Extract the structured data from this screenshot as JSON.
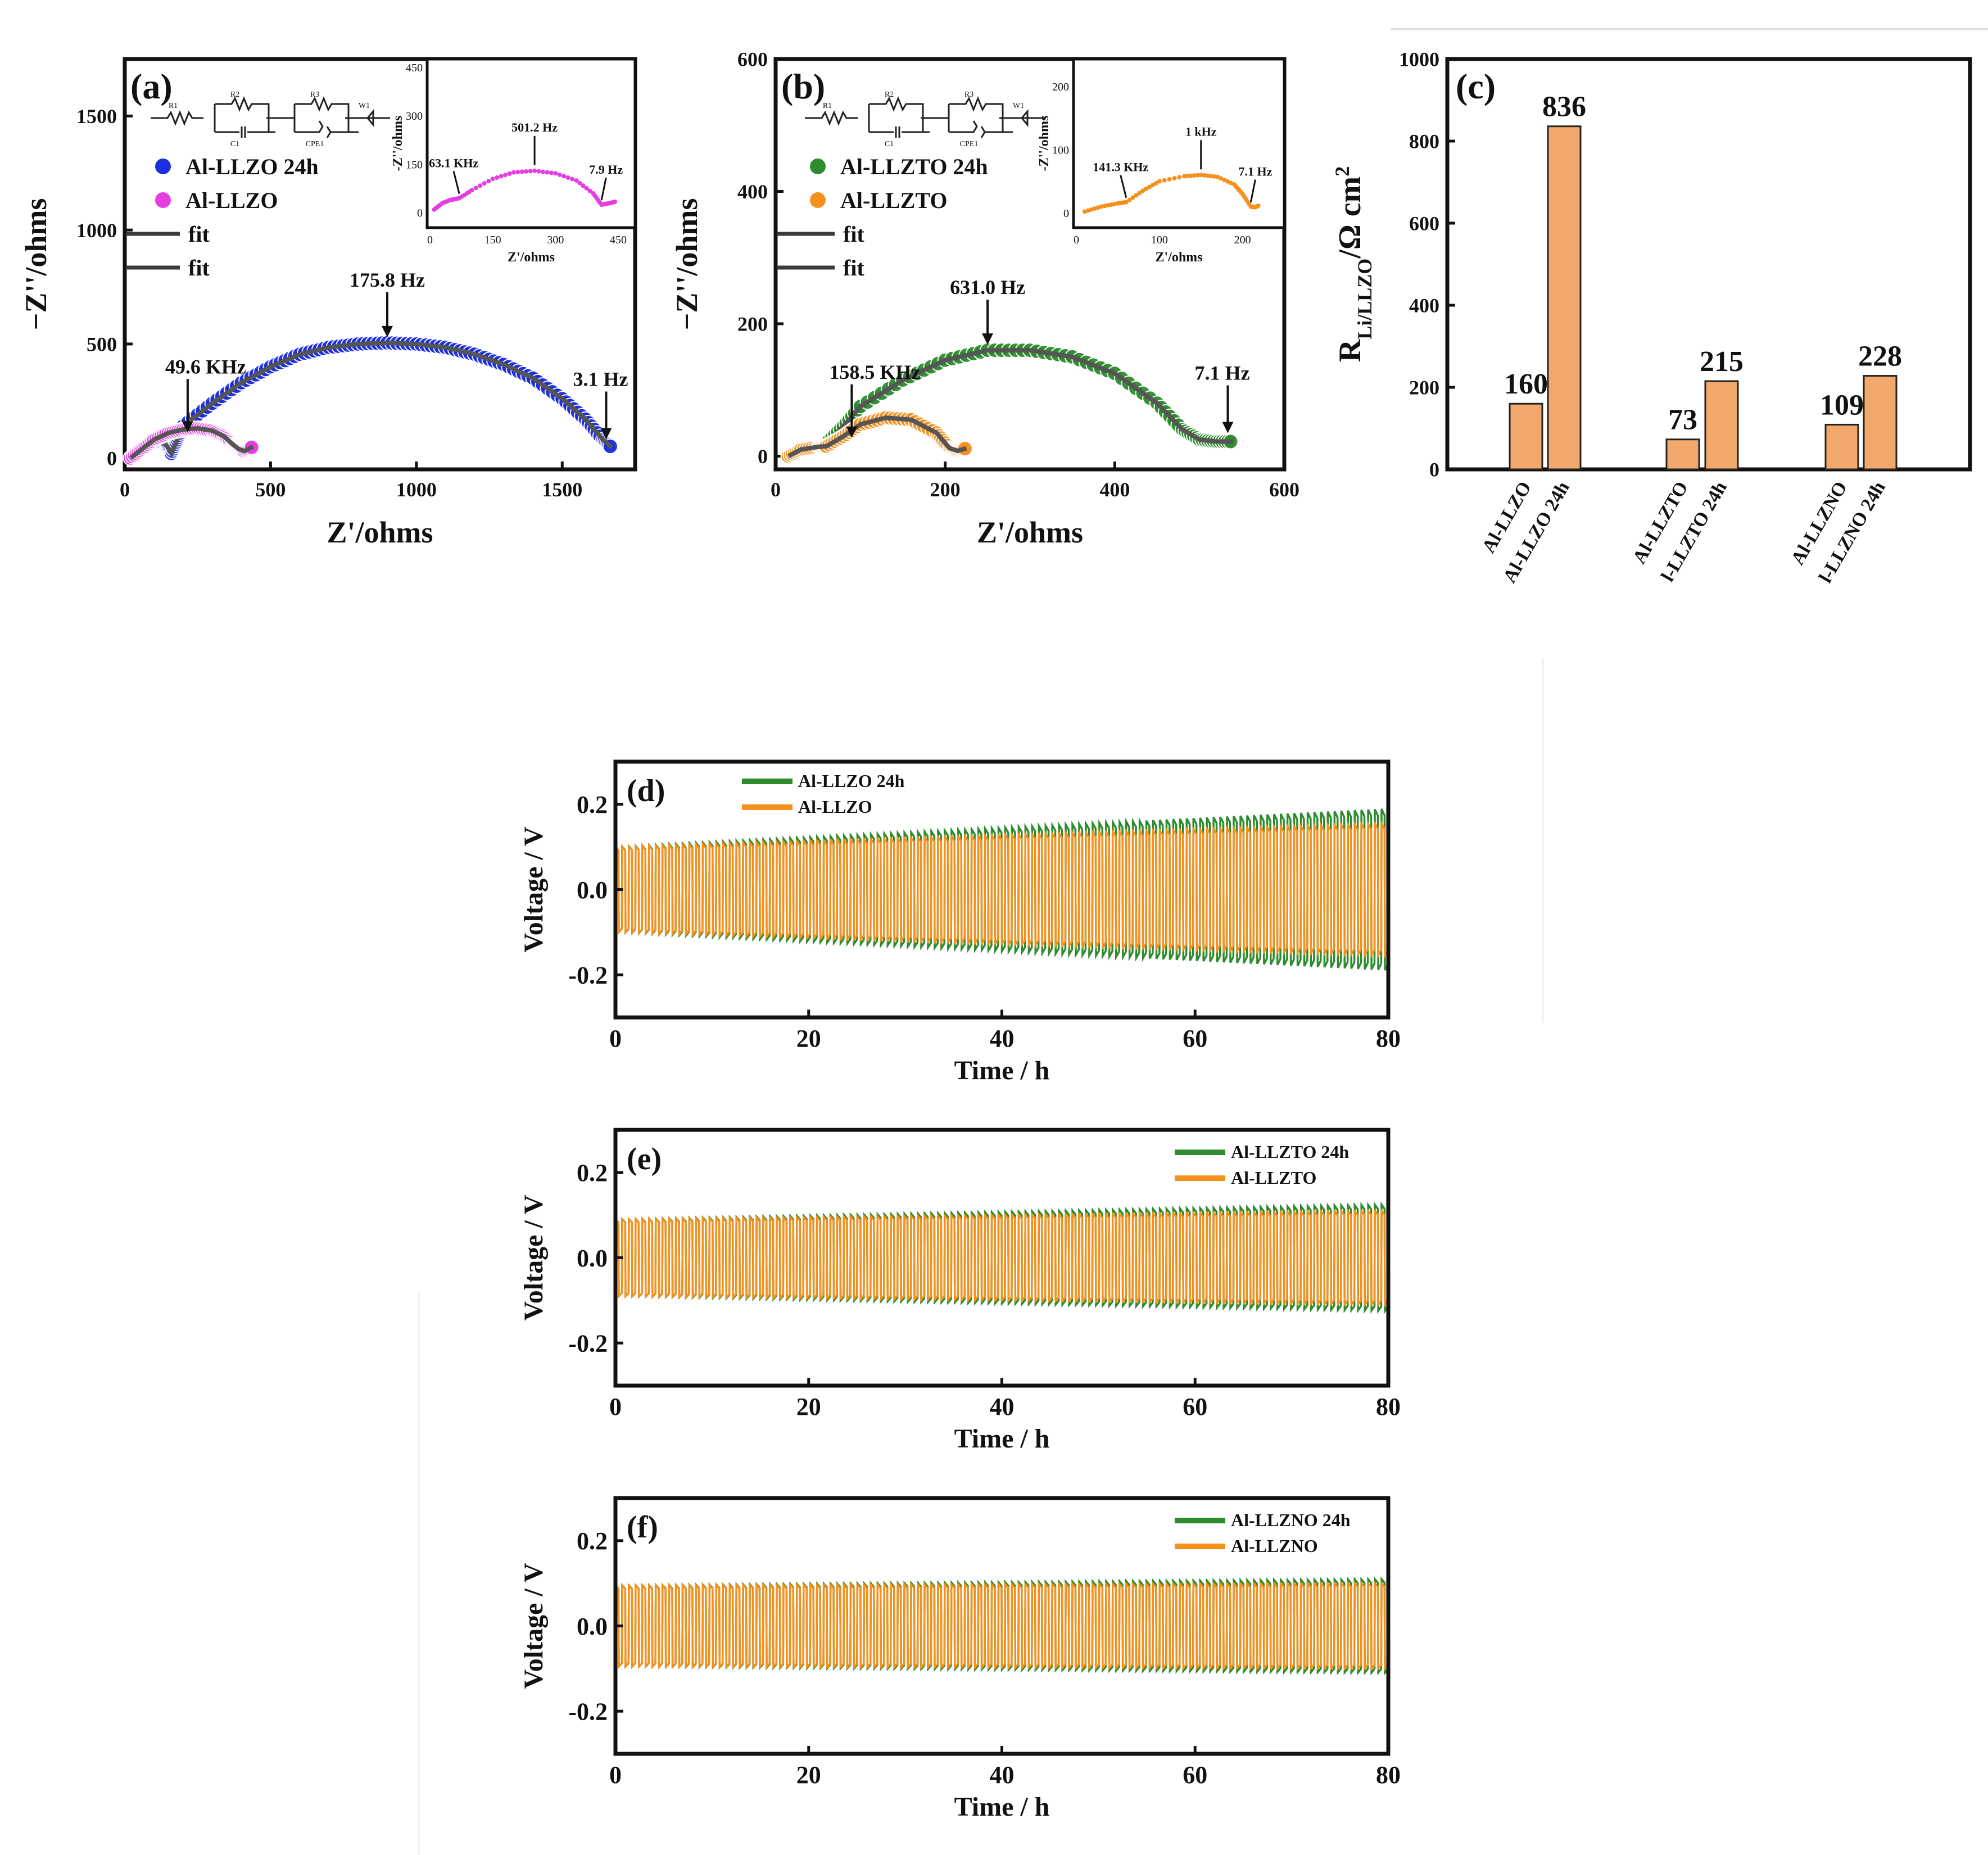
{
  "chart_data": [
    {
      "id": "a",
      "type": "scatter",
      "panel_label": "(a)",
      "xlabel": "Z'/ohms",
      "ylabel": "−Z''/ohms",
      "xlim": [
        0,
        1750
      ],
      "ylim": [
        -50,
        1750
      ],
      "xticks": [
        0,
        500,
        1000,
        1500
      ],
      "yticks": [
        0,
        500,
        1000,
        1500
      ],
      "circuit_labels": [
        "R1",
        "R2",
        "C1",
        "R3",
        "CPE1",
        "W1"
      ],
      "legend": [
        {
          "label": "Al-LLZO 24h",
          "color": "#1f2fe0"
        },
        {
          "label": "Al-LLZO",
          "color": "#e53de0"
        },
        {
          "label": "fit",
          "color": "#3a3a3a"
        },
        {
          "label": "fit",
          "color": "#3a3a3a"
        }
      ],
      "series": [
        {
          "name": "Al-LLZO 24h",
          "color": "#1f2fe0",
          "fit_color": "#555555",
          "x": [
            20,
            60,
            100,
            140,
            160,
            180,
            200,
            300,
            400,
            500,
            600,
            700,
            800,
            900,
            1000,
            1100,
            1200,
            1300,
            1400,
            1500,
            1580,
            1640,
            1670
          ],
          "y": [
            0,
            40,
            75,
            60,
            20,
            80,
            140,
            240,
            330,
            400,
            455,
            485,
            500,
            505,
            500,
            485,
            455,
            410,
            350,
            260,
            170,
            80,
            45
          ]
        },
        {
          "name": "Al-LLZO",
          "color": "#e53de0",
          "fit_color": "#555555",
          "x": [
            20,
            60,
            100,
            150,
            200,
            250,
            300,
            340,
            370,
            390,
            410,
            440
          ],
          "y": [
            0,
            40,
            80,
            110,
            125,
            130,
            120,
            95,
            60,
            40,
            30,
            50
          ]
        }
      ],
      "annotations": [
        "175.8 Hz",
        "49.6 KHz",
        "3.1 Hz"
      ],
      "inset": {
        "xlabel": "Z'/ohms",
        "ylabel": "-Z''/ohms",
        "xlim": [
          0,
          450
        ],
        "ylim": [
          -20,
          450
        ],
        "xticks": [
          0,
          150,
          300,
          450
        ],
        "yticks": [
          0,
          150,
          300,
          450
        ],
        "color": "#e53de0",
        "x": [
          10,
          30,
          50,
          70,
          100,
          150,
          200,
          250,
          300,
          350,
          390,
          410,
          430,
          445
        ],
        "y": [
          10,
          30,
          40,
          45,
          70,
          105,
          125,
          130,
          122,
          100,
          60,
          25,
          30,
          35
        ],
        "annotations": [
          "63.1 KHz",
          "501.2 Hz",
          "7.9 Hz"
        ]
      }
    },
    {
      "id": "b",
      "type": "scatter",
      "panel_label": "(b)",
      "xlabel": "Z'/ohms",
      "ylabel": "−Z''/ohms",
      "xlim": [
        0,
        600
      ],
      "ylim": [
        -20,
        600
      ],
      "xticks": [
        0,
        200,
        400,
        600
      ],
      "yticks": [
        0,
        200,
        400,
        600
      ],
      "circuit_labels": [
        "R1",
        "R2",
        "C1",
        "R3",
        "CPE1",
        "W1"
      ],
      "legend": [
        {
          "label": "Al-LLZTO 24h",
          "color": "#2e8b2e"
        },
        {
          "label": "Al-LLZTO",
          "color": "#f5901e"
        },
        {
          "label": "fit",
          "color": "#3a3a3a"
        },
        {
          "label": "fit",
          "color": "#3a3a3a"
        }
      ],
      "series": [
        {
          "name": "Al-LLZTO 24h",
          "color": "#2e8b2e",
          "fit_color": "#555555",
          "x": [
            15,
            30,
            50,
            60,
            80,
            100,
            150,
            200,
            250,
            300,
            350,
            400,
            450,
            480,
            500,
            520,
            540
          ],
          "y": [
            0,
            12,
            15,
            20,
            45,
            75,
            115,
            145,
            160,
            160,
            150,
            125,
            80,
            40,
            25,
            22,
            22
          ]
        },
        {
          "name": "Al-LLZTO",
          "color": "#f5901e",
          "fit_color": "#555555",
          "x": [
            15,
            30,
            50,
            60,
            80,
            100,
            130,
            160,
            190,
            205,
            215,
            225
          ],
          "y": [
            0,
            10,
            14,
            15,
            30,
            48,
            58,
            55,
            35,
            12,
            8,
            12
          ]
        }
      ],
      "annotations": [
        "631.0 Hz",
        "158.5 KHz",
        "7.1 Hz"
      ],
      "inset": {
        "xlabel": "Z'/ohms",
        "ylabel": "-Z''/ohms",
        "xlim": [
          0,
          230
        ],
        "ylim": [
          -10,
          230
        ],
        "xticks": [
          0,
          100,
          200
        ],
        "yticks": [
          0,
          100,
          200
        ],
        "color": "#f5901e",
        "x": [
          10,
          30,
          50,
          60,
          80,
          100,
          130,
          150,
          170,
          190,
          200,
          210,
          215,
          220
        ],
        "y": [
          2,
          10,
          15,
          17,
          35,
          50,
          58,
          60,
          57,
          45,
          30,
          10,
          9,
          12
        ],
        "annotations": [
          "141.3 KHz",
          "1 kHz",
          "7.1 Hz"
        ]
      }
    },
    {
      "id": "c",
      "type": "bar",
      "panel_label": "(c)",
      "ylabel": "R",
      "ylabel_sub": "Li/LLZO",
      "ylabel_tail": "/Ω cm",
      "ylabel_sup": "2",
      "ylim": [
        0,
        1000
      ],
      "yticks": [
        0,
        200,
        400,
        600,
        800,
        1000
      ],
      "bar_color": "#f2a86a",
      "categories": [
        "Al-LLZO",
        "Al-LLZO 24h",
        "Al-LLZTO",
        "l-LLZTO 24h",
        "Al-LLZNO",
        "l-LLZNO 24h"
      ],
      "values": [
        160,
        836,
        73,
        215,
        109,
        228
      ],
      "value_labels": [
        "160",
        "836",
        "73",
        "215",
        "109",
        "228"
      ]
    },
    {
      "id": "d",
      "type": "line",
      "panel_label": "(d)",
      "xlabel": "Time / h",
      "ylabel": "Voltage / V",
      "xlim": [
        0,
        80
      ],
      "ylim": [
        -0.3,
        0.3
      ],
      "xticks": [
        0,
        20,
        40,
        60,
        80
      ],
      "yticks": [
        -0.2,
        0.0,
        0.2
      ],
      "series": [
        {
          "name": "Al-LLZO 24h",
          "color": "#2e8b2e",
          "amp_start": 0.1,
          "amp_end": 0.19
        },
        {
          "name": "Al-LLZO",
          "color": "#f5901e",
          "amp_start": 0.1,
          "amp_end": 0.155
        }
      ]
    },
    {
      "id": "e",
      "type": "line",
      "panel_label": "(e)",
      "xlabel": "Time / h",
      "ylabel": "Voltage / V",
      "xlim": [
        0,
        80
      ],
      "ylim": [
        -0.3,
        0.3
      ],
      "xticks": [
        0,
        20,
        40,
        60,
        80
      ],
      "yticks": [
        -0.2,
        0.0,
        0.2
      ],
      "series": [
        {
          "name": "Al-LLZTO 24h",
          "color": "#2e8b2e",
          "amp_start": 0.09,
          "amp_end": 0.125
        },
        {
          "name": "Al-LLZTO",
          "color": "#f5901e",
          "amp_start": 0.09,
          "amp_end": 0.11
        }
      ]
    },
    {
      "id": "f",
      "type": "line",
      "panel_label": "(f)",
      "xlabel": "Time / h",
      "ylabel": "Voltage / V",
      "xlim": [
        0,
        80
      ],
      "ylim": [
        -0.3,
        0.3
      ],
      "xticks": [
        0,
        20,
        40,
        60,
        80
      ],
      "yticks": [
        -0.2,
        0.0,
        0.2
      ],
      "series": [
        {
          "name": "Al-LLZNO 24h",
          "color": "#2e8b2e",
          "amp_start": 0.095,
          "amp_end": 0.11
        },
        {
          "name": "Al-LLZNO",
          "color": "#f5901e",
          "amp_start": 0.095,
          "amp_end": 0.1
        }
      ]
    }
  ]
}
